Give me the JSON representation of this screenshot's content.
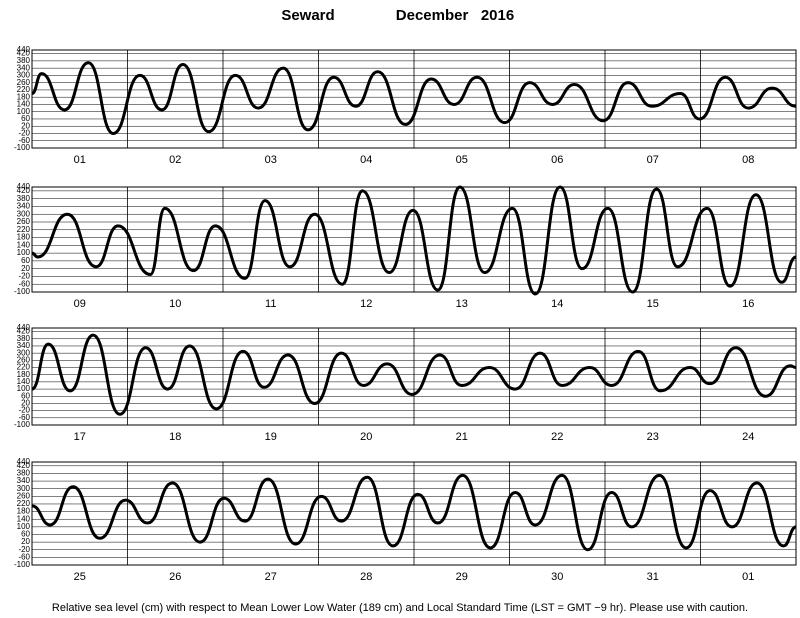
{
  "title": "Seward",
  "date": "December   2016",
  "footnote": "Relative sea level (cm) with respect to Mean Lower Low Water (189 cm) and Local Standard Time (LST = GMT −9 hr). Please use with caution.",
  "chart_data": [
    {
      "type": "line",
      "color": "#000000",
      "grid": true,
      "categories": [
        "01",
        "02",
        "03",
        "04",
        "05",
        "06",
        "07",
        "08"
      ],
      "x": [
        0,
        0.1,
        0.34,
        0.59,
        0.85,
        1.13,
        1.36,
        1.58,
        1.85,
        2.13,
        2.37,
        2.63,
        2.89,
        3.16,
        3.39,
        3.62,
        3.91,
        4.18,
        4.42,
        4.66,
        4.95,
        5.21,
        5.45,
        5.68,
        5.98,
        6.24,
        6.49,
        6.79,
        6.99,
        7.26,
        7.5,
        7.75,
        8.0
      ],
      "values": [
        200,
        310,
        110,
        370,
        -20,
        300,
        110,
        360,
        -10,
        300,
        120,
        340,
        0,
        290,
        130,
        320,
        30,
        280,
        140,
        290,
        40,
        260,
        140,
        250,
        50,
        260,
        130,
        200,
        60,
        290,
        120,
        230,
        130
      ],
      "xlim": [
        0,
        8
      ],
      "ylim": [
        -100,
        440
      ],
      "yticks": [
        -100,
        -60,
        -20,
        20,
        60,
        100,
        140,
        180,
        220,
        260,
        300,
        340,
        380,
        420,
        440
      ]
    },
    {
      "type": "line",
      "color": "#000000",
      "grid": true,
      "categories": [
        "09",
        "10",
        "11",
        "12",
        "13",
        "14",
        "15",
        "16"
      ],
      "x": [
        0,
        0.06,
        0.37,
        0.67,
        0.9,
        1.24,
        1.39,
        1.69,
        1.92,
        2.23,
        2.44,
        2.7,
        2.96,
        3.25,
        3.46,
        3.74,
        3.99,
        4.25,
        4.48,
        4.74,
        5.03,
        5.27,
        5.53,
        5.76,
        6.03,
        6.29,
        6.54,
        6.76,
        7.07,
        7.31,
        7.58,
        7.85,
        8.0
      ],
      "values": [
        100,
        80,
        300,
        30,
        240,
        -10,
        330,
        10,
        240,
        -30,
        370,
        30,
        300,
        -60,
        420,
        0,
        320,
        -90,
        440,
        0,
        330,
        -110,
        440,
        20,
        330,
        -100,
        430,
        30,
        330,
        -70,
        400,
        -50,
        80
      ],
      "xlim": [
        0,
        8
      ],
      "ylim": [
        -100,
        440
      ],
      "yticks": [
        -100,
        -60,
        -20,
        20,
        60,
        100,
        140,
        180,
        220,
        260,
        300,
        340,
        380,
        420,
        440
      ]
    },
    {
      "type": "line",
      "color": "#000000",
      "grid": true,
      "categories": [
        "17",
        "18",
        "19",
        "20",
        "21",
        "22",
        "23",
        "24"
      ],
      "x": [
        0,
        0.17,
        0.4,
        0.64,
        0.92,
        1.19,
        1.42,
        1.65,
        1.93,
        2.21,
        2.43,
        2.68,
        2.96,
        3.24,
        3.47,
        3.72,
        3.98,
        4.27,
        4.5,
        4.79,
        5.06,
        5.32,
        5.55,
        5.84,
        6.07,
        6.35,
        6.58,
        6.89,
        7.1,
        7.37,
        7.68,
        7.94,
        8.0
      ],
      "values": [
        100,
        350,
        90,
        400,
        -40,
        330,
        100,
        340,
        -10,
        310,
        110,
        290,
        20,
        300,
        120,
        240,
        70,
        290,
        120,
        220,
        100,
        300,
        120,
        220,
        120,
        310,
        90,
        220,
        130,
        330,
        60,
        230,
        220
      ],
      "xlim": [
        0,
        8
      ],
      "ylim": [
        -100,
        440
      ],
      "yticks": [
        -100,
        -60,
        -20,
        20,
        60,
        100,
        140,
        180,
        220,
        260,
        300,
        340,
        380,
        420,
        440
      ]
    },
    {
      "type": "line",
      "color": "#000000",
      "grid": true,
      "categories": [
        "25",
        "26",
        "27",
        "28",
        "29",
        "30",
        "31",
        "01"
      ],
      "x": [
        0,
        0.19,
        0.43,
        0.71,
        0.98,
        1.21,
        1.47,
        1.76,
        2.01,
        2.23,
        2.47,
        2.76,
        3.03,
        3.24,
        3.51,
        3.78,
        4.04,
        4.25,
        4.51,
        4.8,
        5.06,
        5.27,
        5.55,
        5.82,
        6.07,
        6.28,
        6.57,
        6.85,
        7.1,
        7.33,
        7.59,
        7.87,
        8.0
      ],
      "values": [
        210,
        110,
        310,
        40,
        240,
        120,
        330,
        20,
        250,
        130,
        350,
        10,
        260,
        130,
        360,
        0,
        270,
        120,
        370,
        -10,
        280,
        110,
        370,
        -20,
        280,
        100,
        370,
        -10,
        290,
        100,
        330,
        0,
        100
      ],
      "xlim": [
        0,
        8
      ],
      "ylim": [
        -100,
        440
      ],
      "yticks": [
        -100,
        -60,
        -20,
        20,
        60,
        100,
        140,
        180,
        220,
        260,
        300,
        340,
        380,
        420,
        440
      ]
    }
  ]
}
